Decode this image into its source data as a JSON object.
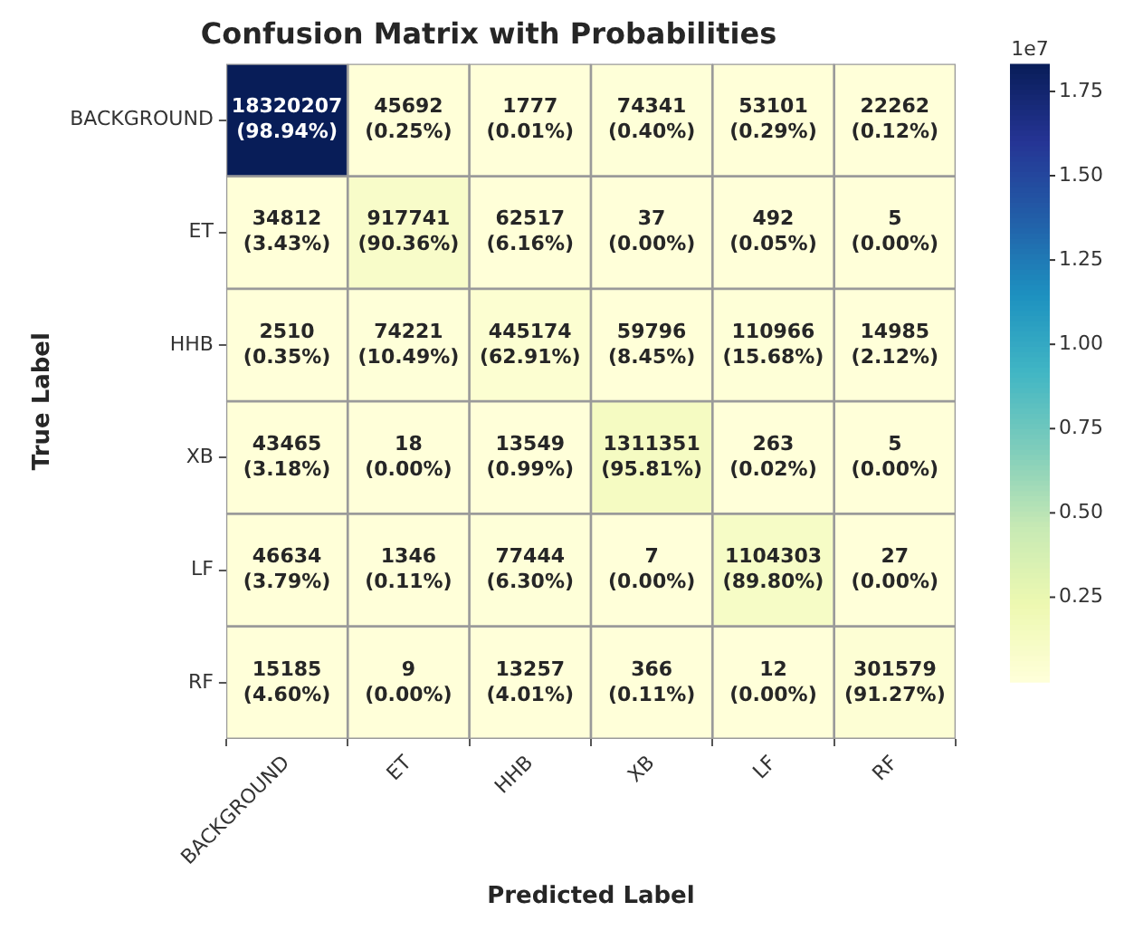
{
  "chart_data": {
    "type": "heatmap",
    "title": "Confusion Matrix with Probabilities",
    "xlabel": "Predicted Label",
    "ylabel": "True Label",
    "clabel": "1e7",
    "categories": [
      "BACKGROUND",
      "ET",
      "HHB",
      "XB",
      "LF",
      "RF"
    ],
    "y_categories": [
      "BACKGROUND",
      "ET",
      "HHB",
      "XB",
      "LF",
      "RF"
    ],
    "cells": [
      [
        1.8320207,
        0.0045692,
        0.0001777,
        0.0074341,
        0.0053101,
        0.0022262
      ],
      [
        0.0034812,
        0.0917741,
        0.0062517,
        3.7e-06,
        4.92e-05,
        5e-07
      ],
      [
        0.000251,
        0.0074221,
        0.0445174,
        0.0059796,
        0.0110966,
        0.0014985
      ],
      [
        0.0043465,
        1.8e-06,
        0.0013549,
        0.1311351,
        2.63e-05,
        5e-07
      ],
      [
        0.0046634,
        0.0001346,
        0.0077444,
        7e-07,
        0.1104303,
        2.7e-06
      ],
      [
        0.0015185,
        9e-07,
        0.0013257,
        3.66e-05,
        1.2e-06,
        0.0301579
      ]
    ],
    "cell_labels": [
      [
        "18320207\n(98.94%)",
        "45692\n(0.25%)",
        "1777\n(0.01%)",
        "74341\n(0.40%)",
        "53101\n(0.29%)",
        "22262\n(0.12%)"
      ],
      [
        "34812\n(3.43%)",
        "917741\n(90.36%)",
        "62517\n(6.16%)",
        "37\n(0.00%)",
        "492\n(0.05%)",
        "5\n(0.00%)"
      ],
      [
        "2510\n(0.35%)",
        "74221\n(10.49%)",
        "445174\n(62.91%)",
        "59796\n(8.45%)",
        "110966\n(15.68%)",
        "14985\n(2.12%)"
      ],
      [
        "43465\n(3.18%)",
        "18\n(0.00%)",
        "13549\n(0.99%)",
        "1311351\n(95.81%)",
        "263\n(0.02%)",
        "5\n(0.00%)"
      ],
      [
        "46634\n(3.79%)",
        "1346\n(0.11%)",
        "77444\n(6.30%)",
        "7\n(0.00%)",
        "1104303\n(89.80%)",
        "27\n(0.00%)"
      ],
      [
        "15185\n(4.60%)",
        "9\n(0.00%)",
        "13257\n(4.01%)",
        "366\n(0.11%)",
        "12\n(0.00%)",
        "301579\n(91.27%)"
      ]
    ],
    "clim": [
      5e-07,
      1.8320207
    ],
    "cticks": [
      0.25,
      {
        "value": 0.5,
        "label": "0.50"
      },
      0.75,
      {
        "value": 1,
        "label": "1.00"
      },
      1.25,
      {
        "value": 1.5,
        "label": "1.50"
      },
      1.75
    ],
    "grid": false
  }
}
